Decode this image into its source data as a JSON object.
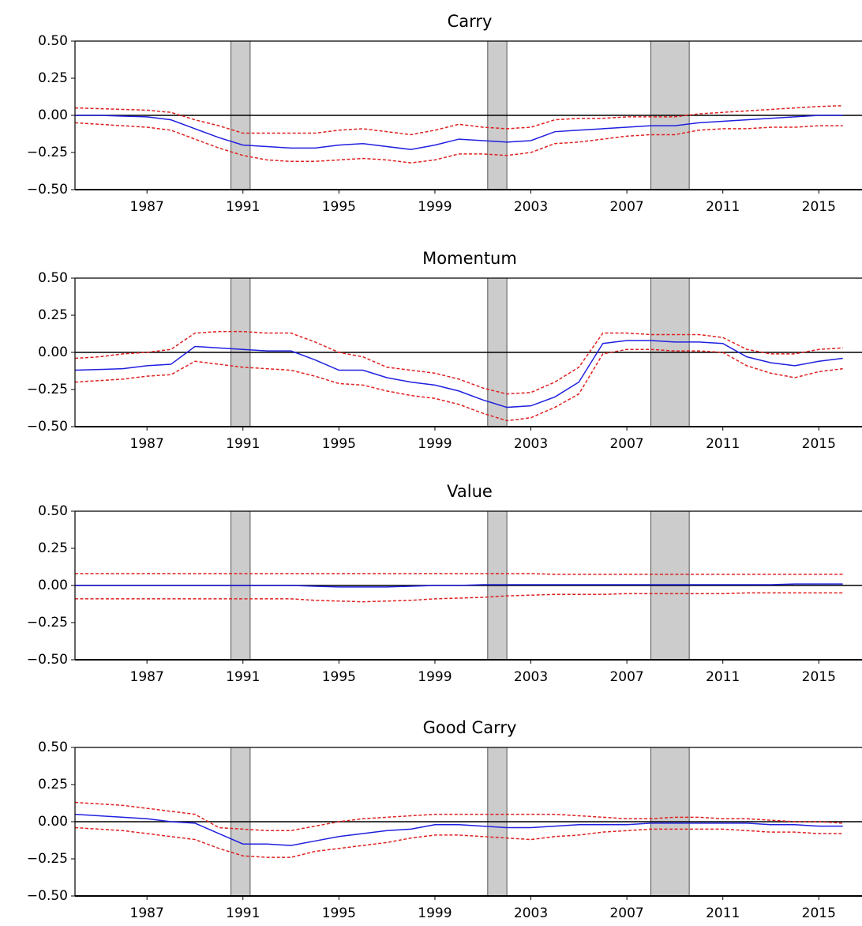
{
  "chart_data": [
    {
      "type": "line",
      "title": "Carry",
      "x": [
        1984,
        1985,
        1986,
        1987,
        1988,
        1989,
        1990,
        1991,
        1992,
        1993,
        1994,
        1995,
        1996,
        1997,
        1998,
        1999,
        2000,
        2001,
        2002,
        2003,
        2004,
        2005,
        2006,
        2007,
        2008,
        2009,
        2010,
        2011,
        2012,
        2013,
        2014,
        2015,
        2016
      ],
      "series": [
        {
          "color": "#2020e0",
          "dashed": false,
          "values": [
            0,
            0,
            -0.005,
            -0.01,
            -0.03,
            -0.09,
            -0.15,
            -0.2,
            -0.21,
            -0.22,
            -0.22,
            -0.2,
            -0.19,
            -0.21,
            -0.23,
            -0.2,
            -0.16,
            -0.17,
            -0.18,
            -0.17,
            -0.11,
            -0.1,
            -0.09,
            -0.08,
            -0.07,
            -0.07,
            -0.05,
            -0.04,
            -0.03,
            -0.02,
            -0.01,
            0,
            0
          ]
        },
        {
          "color": "#e02020",
          "dashed": true,
          "values": [
            0.05,
            0.045,
            0.04,
            0.035,
            0.02,
            -0.03,
            -0.07,
            -0.12,
            -0.12,
            -0.12,
            -0.12,
            -0.1,
            -0.09,
            -0.11,
            -0.13,
            -0.1,
            -0.06,
            -0.08,
            -0.09,
            -0.08,
            -0.03,
            -0.02,
            -0.02,
            -0.01,
            -0.01,
            -0.01,
            0.01,
            0.02,
            0.03,
            0.04,
            0.05,
            0.06,
            0.065
          ]
        },
        {
          "color": "#e02020",
          "dashed": true,
          "values": [
            -0.05,
            -0.06,
            -0.07,
            -0.08,
            -0.1,
            -0.16,
            -0.22,
            -0.27,
            -0.3,
            -0.31,
            -0.31,
            -0.3,
            -0.29,
            -0.3,
            -0.32,
            -0.3,
            -0.26,
            -0.26,
            -0.27,
            -0.25,
            -0.19,
            -0.18,
            -0.16,
            -0.14,
            -0.13,
            -0.13,
            -0.1,
            -0.09,
            -0.09,
            -0.08,
            -0.08,
            -0.07,
            -0.07
          ]
        }
      ],
      "hline": 0,
      "shaded_regions": [
        [
          1990.5,
          1991.3
        ],
        [
          2001.2,
          2002.0
        ],
        [
          2008.0,
          2009.6
        ]
      ],
      "shade_color": "#cccccc",
      "xlim": [
        1984,
        2016.8
      ],
      "xticks": [
        1987,
        1991,
        1995,
        1999,
        2003,
        2007,
        2011,
        2015
      ],
      "ylim": [
        -0.5,
        0.5
      ],
      "yticks": [
        {
          "value": -0.5,
          "label": "−0.50"
        },
        {
          "value": -0.25,
          "label": "−0.25"
        },
        {
          "value": 0,
          "label": "0.00"
        },
        {
          "value": 0.25,
          "label": "0.25"
        },
        {
          "value": 0.5,
          "label": "0.50"
        }
      ]
    },
    {
      "type": "line",
      "title": "Momentum",
      "x": [
        1984,
        1985,
        1986,
        1987,
        1988,
        1989,
        1990,
        1991,
        1992,
        1993,
        1994,
        1995,
        1996,
        1997,
        1998,
        1999,
        2000,
        2001,
        2002,
        2003,
        2004,
        2005,
        2006,
        2007,
        2008,
        2009,
        2010,
        2011,
        2012,
        2013,
        2014,
        2015,
        2016
      ],
      "series": [
        {
          "color": "#2020e0",
          "dashed": false,
          "values": [
            -0.12,
            -0.115,
            -0.11,
            -0.09,
            -0.08,
            0.04,
            0.03,
            0.02,
            0.01,
            0.01,
            -0.05,
            -0.12,
            -0.12,
            -0.17,
            -0.2,
            -0.22,
            -0.26,
            -0.32,
            -0.37,
            -0.36,
            -0.3,
            -0.2,
            0.06,
            0.08,
            0.08,
            0.07,
            0.07,
            0.06,
            -0.03,
            -0.07,
            -0.09,
            -0.06,
            -0.04
          ]
        },
        {
          "color": "#e02020",
          "dashed": true,
          "values": [
            -0.04,
            -0.03,
            -0.01,
            0,
            0.02,
            0.13,
            0.14,
            0.14,
            0.13,
            0.13,
            0.07,
            0,
            -0.03,
            -0.1,
            -0.12,
            -0.14,
            -0.18,
            -0.24,
            -0.28,
            -0.27,
            -0.2,
            -0.1,
            0.13,
            0.13,
            0.12,
            0.12,
            0.12,
            0.1,
            0.02,
            -0.01,
            -0.01,
            0.02,
            0.03
          ]
        },
        {
          "color": "#e02020",
          "dashed": true,
          "values": [
            -0.2,
            -0.19,
            -0.18,
            -0.16,
            -0.15,
            -0.06,
            -0.08,
            -0.1,
            -0.11,
            -0.12,
            -0.16,
            -0.21,
            -0.22,
            -0.26,
            -0.29,
            -0.31,
            -0.35,
            -0.41,
            -0.46,
            -0.44,
            -0.37,
            -0.28,
            -0.01,
            0.02,
            0.02,
            0.01,
            0.01,
            0,
            -0.09,
            -0.14,
            -0.17,
            -0.13,
            -0.11
          ]
        }
      ],
      "hline": 0,
      "shaded_regions": [
        [
          1990.5,
          1991.3
        ],
        [
          2001.2,
          2002.0
        ],
        [
          2008.0,
          2009.6
        ]
      ],
      "shade_color": "#cccccc",
      "xlim": [
        1984,
        2016.8
      ],
      "xticks": [
        1987,
        1991,
        1995,
        1999,
        2003,
        2007,
        2011,
        2015
      ],
      "ylim": [
        -0.5,
        0.5
      ],
      "yticks": [
        {
          "value": -0.5,
          "label": "−0.50"
        },
        {
          "value": -0.25,
          "label": "−0.25"
        },
        {
          "value": 0,
          "label": "0.00"
        },
        {
          "value": 0.25,
          "label": "0.25"
        },
        {
          "value": 0.5,
          "label": "0.50"
        }
      ]
    },
    {
      "type": "line",
      "title": "Value",
      "x": [
        1984,
        1985,
        1986,
        1987,
        1988,
        1989,
        1990,
        1991,
        1992,
        1993,
        1994,
        1995,
        1996,
        1997,
        1998,
        1999,
        2000,
        2001,
        2002,
        2003,
        2004,
        2005,
        2006,
        2007,
        2008,
        2009,
        2010,
        2011,
        2012,
        2013,
        2014,
        2015,
        2016
      ],
      "series": [
        {
          "color": "#2020e0",
          "dashed": false,
          "values": [
            0,
            0,
            0,
            0,
            0,
            0,
            0,
            0,
            0,
            0,
            -0.005,
            -0.01,
            -0.01,
            -0.01,
            -0.005,
            0,
            0,
            0.005,
            0.005,
            0.005,
            0.005,
            0.005,
            0.005,
            0.005,
            0.005,
            0.005,
            0.005,
            0.005,
            0.005,
            0.005,
            0.01,
            0.01,
            0.01
          ]
        },
        {
          "color": "#e02020",
          "dashed": true,
          "values": [
            0.08,
            0.08,
            0.08,
            0.08,
            0.08,
            0.08,
            0.08,
            0.08,
            0.08,
            0.08,
            0.08,
            0.08,
            0.08,
            0.08,
            0.08,
            0.08,
            0.08,
            0.08,
            0.08,
            0.08,
            0.075,
            0.075,
            0.075,
            0.075,
            0.075,
            0.075,
            0.075,
            0.075,
            0.075,
            0.075,
            0.075,
            0.075,
            0.075
          ]
        },
        {
          "color": "#e02020",
          "dashed": true,
          "values": [
            -0.09,
            -0.09,
            -0.09,
            -0.09,
            -0.09,
            -0.09,
            -0.09,
            -0.09,
            -0.09,
            -0.09,
            -0.1,
            -0.105,
            -0.11,
            -0.105,
            -0.1,
            -0.09,
            -0.085,
            -0.08,
            -0.07,
            -0.065,
            -0.06,
            -0.06,
            -0.06,
            -0.055,
            -0.055,
            -0.055,
            -0.055,
            -0.055,
            -0.05,
            -0.05,
            -0.05,
            -0.05,
            -0.05
          ]
        }
      ],
      "hline": 0,
      "shaded_regions": [
        [
          1990.5,
          1991.3
        ],
        [
          2001.2,
          2002.0
        ],
        [
          2008.0,
          2009.6
        ]
      ],
      "shade_color": "#cccccc",
      "xlim": [
        1984,
        2016.8
      ],
      "xticks": [
        1987,
        1991,
        1995,
        1999,
        2003,
        2007,
        2011,
        2015
      ],
      "ylim": [
        -0.5,
        0.5
      ],
      "yticks": [
        {
          "value": -0.5,
          "label": "−0.50"
        },
        {
          "value": -0.25,
          "label": "−0.25"
        },
        {
          "value": 0,
          "label": "0.00"
        },
        {
          "value": 0.25,
          "label": "0.25"
        },
        {
          "value": 0.5,
          "label": "0.50"
        }
      ]
    },
    {
      "type": "line",
      "title": "Good Carry",
      "x": [
        1984,
        1985,
        1986,
        1987,
        1988,
        1989,
        1990,
        1991,
        1992,
        1993,
        1994,
        1995,
        1996,
        1997,
        1998,
        1999,
        2000,
        2001,
        2002,
        2003,
        2004,
        2005,
        2006,
        2007,
        2008,
        2009,
        2010,
        2011,
        2012,
        2013,
        2014,
        2015,
        2016
      ],
      "series": [
        {
          "color": "#2020e0",
          "dashed": false,
          "values": [
            0.05,
            0.04,
            0.03,
            0.02,
            0,
            -0.01,
            -0.08,
            -0.15,
            -0.15,
            -0.16,
            -0.13,
            -0.1,
            -0.08,
            -0.06,
            -0.05,
            -0.02,
            -0.02,
            -0.03,
            -0.04,
            -0.04,
            -0.03,
            -0.02,
            -0.02,
            -0.02,
            -0.01,
            -0.01,
            -0.01,
            -0.01,
            -0.01,
            -0.02,
            -0.02,
            -0.03,
            -0.03
          ]
        },
        {
          "color": "#e02020",
          "dashed": true,
          "values": [
            0.13,
            0.12,
            0.11,
            0.09,
            0.07,
            0.05,
            -0.04,
            -0.05,
            -0.06,
            -0.06,
            -0.03,
            0,
            0.02,
            0.03,
            0.04,
            0.05,
            0.05,
            0.05,
            0.05,
            0.05,
            0.05,
            0.04,
            0.03,
            0.02,
            0.02,
            0.03,
            0.03,
            0.02,
            0.02,
            0.01,
            0,
            0,
            -0.01
          ]
        },
        {
          "color": "#e02020",
          "dashed": true,
          "values": [
            -0.04,
            -0.05,
            -0.06,
            -0.08,
            -0.1,
            -0.12,
            -0.18,
            -0.23,
            -0.24,
            -0.24,
            -0.2,
            -0.18,
            -0.16,
            -0.14,
            -0.11,
            -0.09,
            -0.09,
            -0.1,
            -0.11,
            -0.12,
            -0.1,
            -0.09,
            -0.07,
            -0.06,
            -0.05,
            -0.05,
            -0.05,
            -0.05,
            -0.06,
            -0.07,
            -0.07,
            -0.08,
            -0.08
          ]
        }
      ],
      "hline": 0,
      "shaded_regions": [
        [
          1990.5,
          1991.3
        ],
        [
          2001.2,
          2002.0
        ],
        [
          2008.0,
          2009.6
        ]
      ],
      "shade_color": "#cccccc",
      "xlim": [
        1984,
        2016.8
      ],
      "xticks": [
        1987,
        1991,
        1995,
        1999,
        2003,
        2007,
        2011,
        2015
      ],
      "ylim": [
        -0.5,
        0.5
      ],
      "yticks": [
        {
          "value": -0.5,
          "label": "−0.50"
        },
        {
          "value": -0.25,
          "label": "−0.25"
        },
        {
          "value": 0,
          "label": "0.00"
        },
        {
          "value": 0.25,
          "label": "0.25"
        },
        {
          "value": 0.5,
          "label": "0.50"
        }
      ]
    }
  ]
}
